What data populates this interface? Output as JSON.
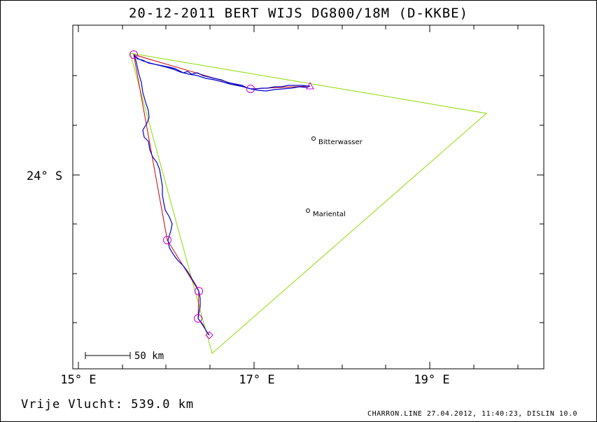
{
  "title": "20-12-2011    BERT WIJS    DG800/18M (D-KKBE)",
  "map": {
    "lon_labels": [
      "15° E",
      "17° E",
      "19° E"
    ],
    "lat_labels": [
      "24° S"
    ],
    "places": [
      {
        "name": "Bitterwasser"
      },
      {
        "name": "Mariental"
      }
    ],
    "scale_label": "50 km",
    "colors": {
      "track": "#0000cc",
      "route": "#cc0000",
      "triangle": "#88dd00",
      "turnpoint": "#cc00cc",
      "frame": "#000000"
    }
  },
  "footer": {
    "distance_text": "Vrije Vlucht:  539.0 km",
    "credit": "CHARRON.LINE 27.04.2012, 11:40:23, DISLIN 10.0"
  }
}
